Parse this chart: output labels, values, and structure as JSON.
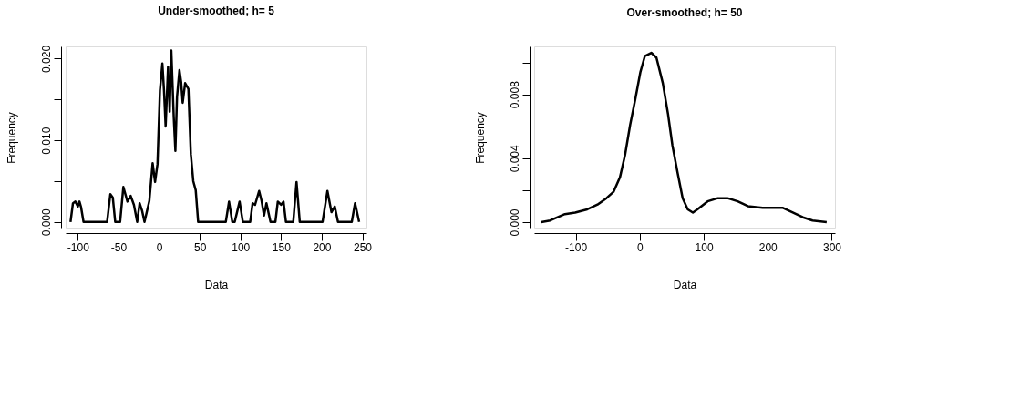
{
  "chart_data": [
    {
      "type": "line",
      "title": "Under-smoothed; h= 5",
      "xlabel": "Data",
      "ylabel": "Frequency",
      "xlim": [
        -115,
        255
      ],
      "ylim": [
        -0.0008,
        0.0215
      ],
      "xticks": [
        -100,
        -50,
        0,
        50,
        100,
        150,
        200,
        250
      ],
      "yticks": [
        {
          "value": 0,
          "label": "0.000"
        },
        {
          "value": 0.005,
          "label": null
        },
        {
          "value": 0.01,
          "label": "0.010"
        },
        {
          "value": 0.015,
          "label": null
        },
        {
          "value": 0.02,
          "label": "0.020"
        }
      ],
      "grid": false,
      "series": [
        {
          "color": "#000000",
          "x": [
            -109,
            -106,
            -103,
            -100,
            -98,
            -96,
            -93,
            -64,
            -60,
            -57,
            -54,
            -48,
            -44,
            -39,
            -35,
            -31,
            -27,
            -24,
            -21,
            -18,
            -12,
            -8,
            -5,
            -2,
            1,
            4,
            6,
            8,
            11,
            13,
            15,
            18,
            20,
            22,
            25,
            27,
            29,
            32,
            36,
            39,
            42,
            45,
            48,
            82,
            86,
            90,
            93,
            99,
            103,
            112,
            115,
            118,
            123,
            126,
            129,
            132,
            137,
            143,
            146,
            150,
            153,
            156,
            165,
            169,
            173,
            201,
            207,
            212,
            216,
            220,
            237,
            241,
            246
          ],
          "values": [
            0,
            0.0023,
            0.0025,
            0.0019,
            0.0025,
            0.0018,
            0,
            0,
            0.0034,
            0.003,
            0,
            0,
            0.0043,
            0.0025,
            0.0032,
            0.0021,
            0,
            0.0023,
            0.0014,
            0,
            0.0026,
            0.0072,
            0.0049,
            0.0071,
            0.0161,
            0.0194,
            0.0161,
            0.0117,
            0.019,
            0.0135,
            0.021,
            0.0128,
            0.0087,
            0.0153,
            0.0186,
            0.0172,
            0.0146,
            0.017,
            0.0163,
            0.0083,
            0.005,
            0.0039,
            0,
            0,
            0.0025,
            0,
            0,
            0.0025,
            0,
            0,
            0.0023,
            0.0021,
            0.0038,
            0.0026,
            0.0008,
            0.0023,
            0,
            0,
            0.0025,
            0.0021,
            0.0025,
            0,
            0,
            0.0049,
            0,
            0,
            0.0038,
            0.0012,
            0.0019,
            0,
            0,
            0.0023,
            0
          ]
        }
      ]
    },
    {
      "type": "line",
      "title": "Over-smoothed; h= 50",
      "xlabel": "Data",
      "ylabel": "Frequency",
      "xlim": [
        -165,
        305
      ],
      "ylim": [
        -0.0004,
        0.011
      ],
      "xticks": [
        -100,
        0,
        100,
        200,
        300
      ],
      "yticks": [
        {
          "value": 0,
          "label": "0.000"
        },
        {
          "value": 0.002,
          "label": null
        },
        {
          "value": 0.004,
          "label": "0.004"
        },
        {
          "value": 0.006,
          "label": null
        },
        {
          "value": 0.008,
          "label": "0.008"
        },
        {
          "value": 0.01,
          "label": null
        }
      ],
      "grid": false,
      "series": [
        {
          "color": "#000000",
          "x": [
            -154,
            -140,
            -117,
            -101,
            -82,
            -66,
            -52,
            -41,
            -31,
            -23,
            -15,
            -7,
            1,
            8,
            18,
            26,
            36,
            44,
            51,
            59,
            67,
            75,
            83,
            90,
            106,
            122,
            137,
            153,
            169,
            192,
            223,
            239,
            255,
            270,
            292
          ],
          "values": [
            0,
            0.0001,
            0.0005,
            0.0006,
            0.0008,
            0.0011,
            0.0015,
            0.0019,
            0.0028,
            0.0042,
            0.0061,
            0.0077,
            0.0094,
            0.0104,
            0.0106,
            0.0103,
            0.0087,
            0.0068,
            0.0048,
            0.0031,
            0.0015,
            0.0008,
            0.0006,
            0.0008,
            0.0013,
            0.0015,
            0.0015,
            0.0013,
            0.001,
            0.0009,
            0.0009,
            0.0006,
            0.0003,
            0.0001,
            0
          ]
        }
      ]
    }
  ]
}
